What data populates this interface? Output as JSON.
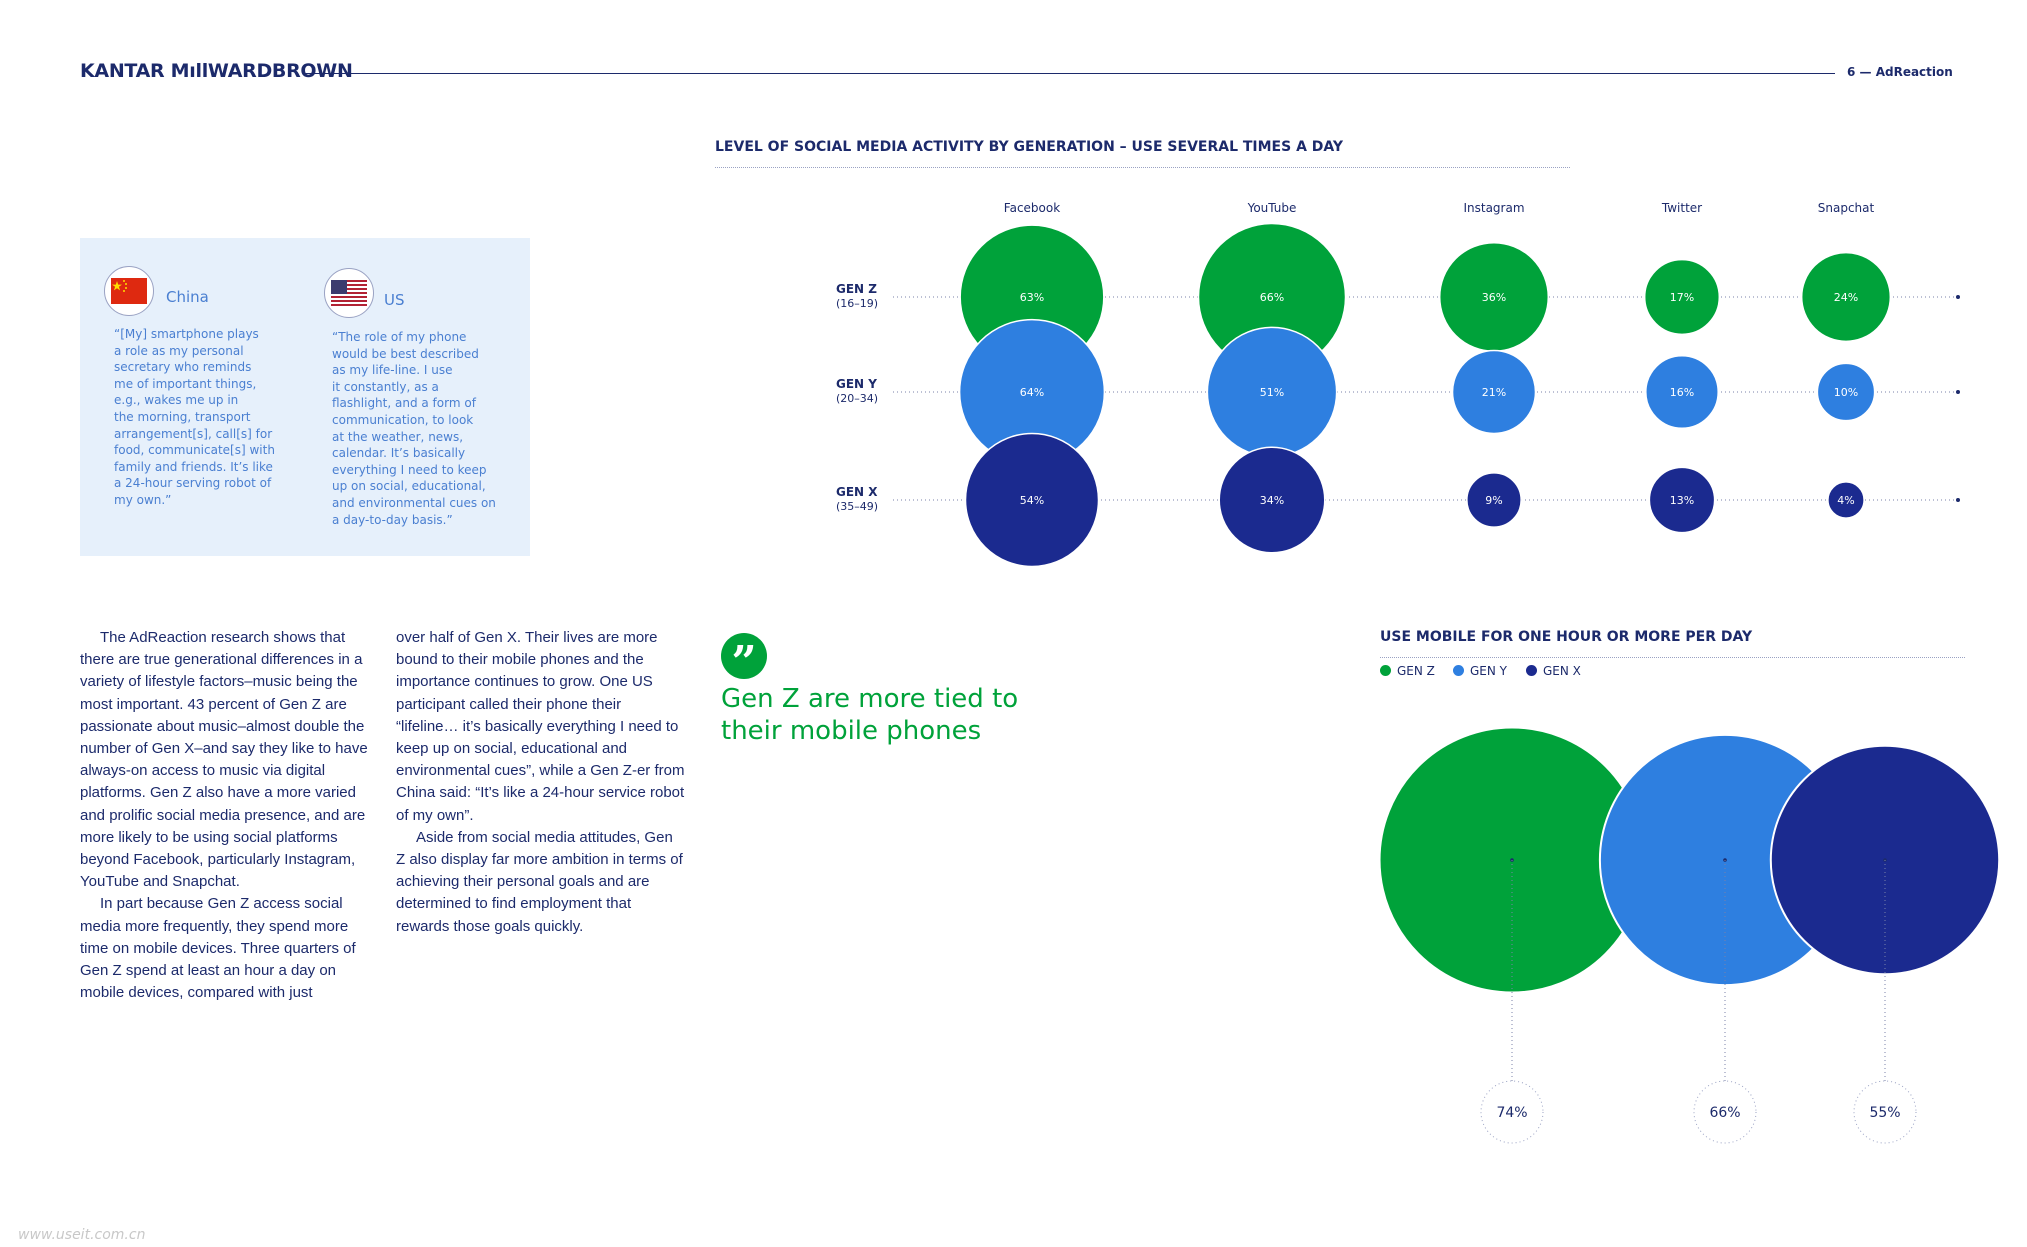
{
  "header": {
    "logo": "KANTAR MıllWARDBROWN",
    "page_label": "6  —  AdReaction"
  },
  "quote_box": {
    "china": {
      "country": "China",
      "text": "“[My] smartphone plays\na role as my personal\nsecretary who reminds\nme of important things,\ne.g., wakes me up in\nthe morning, transport\narrangement[s], call[s] for\nfood, communicate[s] with\nfamily and friends. It’s like\na 24-hour serving robot of\nmy own.”"
    },
    "us": {
      "country": "US",
      "text": "“The role of my phone\nwould be best described\nas my life-line. I use\nit constantly, as a\nflashlight, and a form of\ncommunication, to look\nat the weather, news,\ncalendar. It’s basically\neverything I need to keep\nup on social, educational,\nand environmental cues on\na day-to-day basis.”"
    }
  },
  "body": {
    "col1_p1": "The AdReaction research shows that there are true generational differences in a variety of lifestyle factors–music being the most important. 43 percent of Gen Z are passionate about music–almost double the number of Gen X–and say they like to have always-on access to music via digital platforms. Gen Z also have a more varied and prolific social media presence, and are more likely to be using social platforms beyond Facebook, particularly Instagram, YouTube and Snapchat.",
    "col1_p2": "In part because Gen Z access social media more frequently, they spend more time on mobile devices. Three quarters of Gen Z spend at least an hour a day on mobile devices, compared with just",
    "col2_p1": "over half of Gen X. Their lives are more bound to their mobile phones and the importance continues to grow. One US participant called their phone their “lifeline… it’s basically everything I need to keep up on social, educational and environmental cues”, while a Gen Z-er from China said: “It’s like a 24-hour service robot of my own”.",
    "col2_p2": "Aside from social media attitudes, Gen Z also display far more ambition in terms of achieving their personal goals and are determined to find employment that rewards those goals quickly."
  },
  "pull_quote": {
    "mark": "”",
    "text": "Gen Z are more tied to their mobile phones"
  },
  "colors": {
    "gen_z": "#00a23a",
    "gen_y": "#2e7fe0",
    "gen_x": "#1b2a8f",
    "navy": "#1c2a6b"
  },
  "chart_data": [
    {
      "type": "bubble",
      "title": "LEVEL OF SOCIAL MEDIA ACTIVITY BY GENERATION – USE SEVERAL TIMES A DAY",
      "categories": [
        "Facebook",
        "YouTube",
        "Instagram",
        "Twitter",
        "Snapchat"
      ],
      "series": [
        {
          "name": "GEN Z",
          "sublabel": "(16–19)",
          "values": [
            63,
            66,
            36,
            17,
            24
          ],
          "labels": [
            "63%",
            "66%",
            "36%",
            "17%",
            "24%"
          ]
        },
        {
          "name": "GEN Y",
          "sublabel": "(20–34)",
          "values": [
            64,
            51,
            21,
            16,
            10
          ],
          "labels": [
            "64%",
            "51%",
            "21%",
            "16%",
            "10%"
          ]
        },
        {
          "name": "GEN X",
          "sublabel": "(35–49)",
          "values": [
            54,
            34,
            9,
            13,
            4
          ],
          "labels": [
            "54%",
            "34%",
            "9%",
            "13%",
            "4%"
          ]
        }
      ]
    },
    {
      "type": "bubble",
      "title": "USE MOBILE FOR ONE HOUR OR MORE PER DAY",
      "legend": [
        "GEN Z",
        "GEN Y",
        "GEN X"
      ],
      "values": [
        74,
        66,
        55
      ],
      "labels": [
        "74%",
        "66%",
        "55%"
      ]
    }
  ],
  "watermark": "www.useit.com.cn"
}
